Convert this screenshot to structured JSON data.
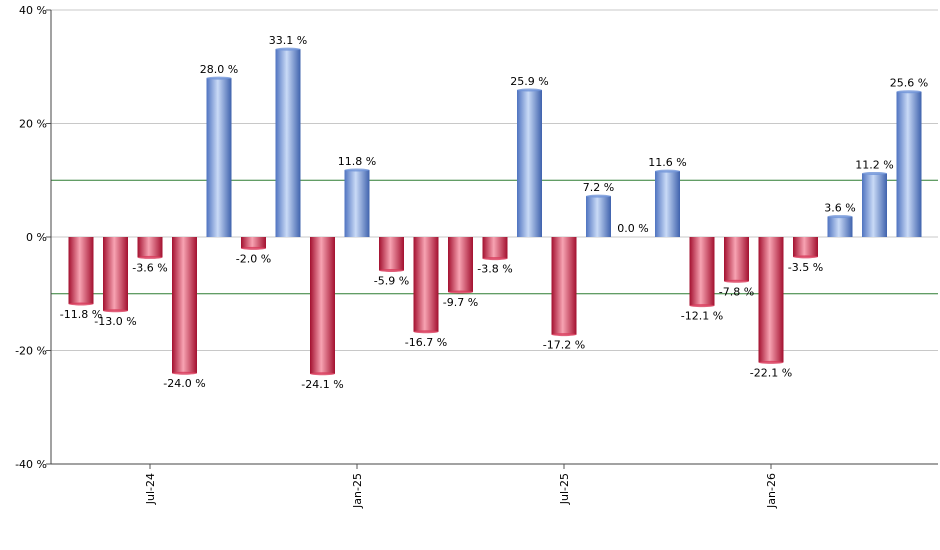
{
  "chart_data": {
    "type": "bar",
    "y_unit_suffix": " %",
    "ylim": [
      -40,
      40
    ],
    "yticks": [
      -40,
      -20,
      0,
      20,
      40
    ],
    "ytick_labels": [
      "-40 %",
      "-20 %",
      "0 %",
      "20 %",
      "40 %"
    ],
    "reference_lines": [
      10,
      -10
    ],
    "grid": true,
    "values": [
      -11.8,
      -13.0,
      -3.6,
      -24.0,
      28.0,
      -2.0,
      33.1,
      -24.1,
      11.8,
      -5.9,
      -16.7,
      -9.7,
      -3.8,
      25.9,
      -17.2,
      7.2,
      0.0,
      11.6,
      -12.1,
      -7.8,
      -22.1,
      -3.5,
      3.6,
      11.2,
      25.6
    ],
    "labels": [
      "-11.8 %",
      "-13.0 %",
      "-3.6 %",
      "-24.0 %",
      "28.0 %",
      "-2.0 %",
      "33.1 %",
      "-24.1 %",
      "11.8 %",
      "-5.9 %",
      "-16.7 %",
      "-9.7 %",
      "-3.8 %",
      "25.9 %",
      "-17.2 %",
      "7.2 %",
      "0.0 %",
      "11.6 %",
      "-12.1 %",
      "-7.8 %",
      "-22.1 %",
      "-3.5 %",
      "3.6 %",
      "11.2 %",
      "25.6 %"
    ],
    "x_ticks": [
      {
        "index": 2,
        "label": "Jul-24"
      },
      {
        "index": 8,
        "label": "Jan-25"
      },
      {
        "index": 14,
        "label": "Jul-25"
      },
      {
        "index": 20,
        "label": "Jan-26"
      }
    ],
    "colors": {
      "positive": "#6f93d8",
      "negative": "#d83a5a",
      "reference_line": "#2e7d32",
      "grid": "#c8c8c8"
    }
  }
}
